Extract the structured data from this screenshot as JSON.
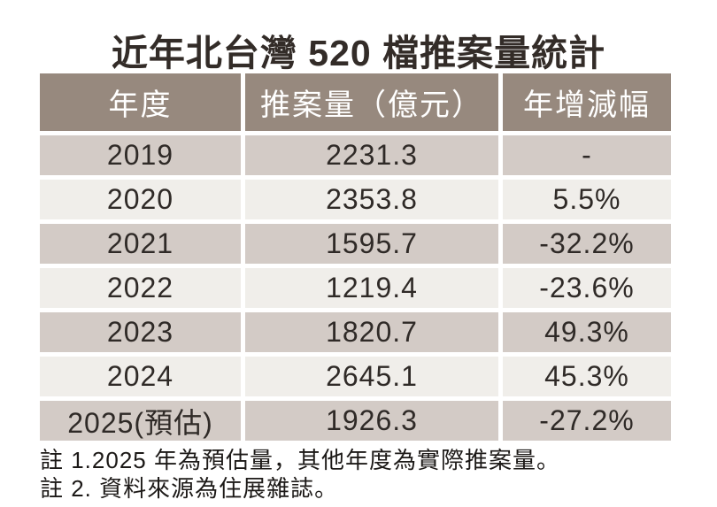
{
  "title": "近年北台灣 520 檔推案量統計",
  "table": {
    "headers": [
      "年度",
      "推案量（億元）",
      "年增減幅"
    ],
    "rows": [
      [
        "2019",
        "2231.3",
        "-"
      ],
      [
        "2020",
        "2353.8",
        "5.5%"
      ],
      [
        "2021",
        "1595.7",
        "-32.2%"
      ],
      [
        "2022",
        "1219.4",
        "-23.6%"
      ],
      [
        "2023",
        "1820.7",
        "49.3%"
      ],
      [
        "2024",
        "2645.1",
        "45.3%"
      ],
      [
        "2025(預估)",
        "1926.3",
        "-27.2%"
      ]
    ]
  },
  "notes": {
    "note1": "註 1.2025 年為預估量，其他年度為實際推案量。",
    "note2": "註 2. 資料來源為住展雜誌。"
  },
  "colors": {
    "header_bg": "#97897e",
    "header_text": "#ffffff",
    "row_dark_bg": "#d3cbc6",
    "row_light_bg": "#f0eeea",
    "body_text": "#2f2a27",
    "title_text": "#332c28",
    "notes_text": "#1c1917"
  },
  "chart_data": {
    "type": "table",
    "title": "近年北台灣 520 檔推案量統計",
    "columns": [
      "年度",
      "推案量（億元）",
      "年增減幅"
    ],
    "rows": [
      {
        "year": "2019",
        "volume_100m_twd": 2231.3,
        "yoy_change": null
      },
      {
        "year": "2020",
        "volume_100m_twd": 2353.8,
        "yoy_change": "5.5%"
      },
      {
        "year": "2021",
        "volume_100m_twd": 1595.7,
        "yoy_change": "-32.2%"
      },
      {
        "year": "2022",
        "volume_100m_twd": 1219.4,
        "yoy_change": "-23.6%"
      },
      {
        "year": "2023",
        "volume_100m_twd": 1820.7,
        "yoy_change": "49.3%"
      },
      {
        "year": "2024",
        "volume_100m_twd": 2645.1,
        "yoy_change": "45.3%"
      },
      {
        "year": "2025(預估)",
        "volume_100m_twd": 1926.3,
        "yoy_change": "-27.2%"
      }
    ],
    "notes": [
      "註 1.2025 年為預估量，其他年度為實際推案量。",
      "註 2. 資料來源為住展雜誌。"
    ]
  }
}
